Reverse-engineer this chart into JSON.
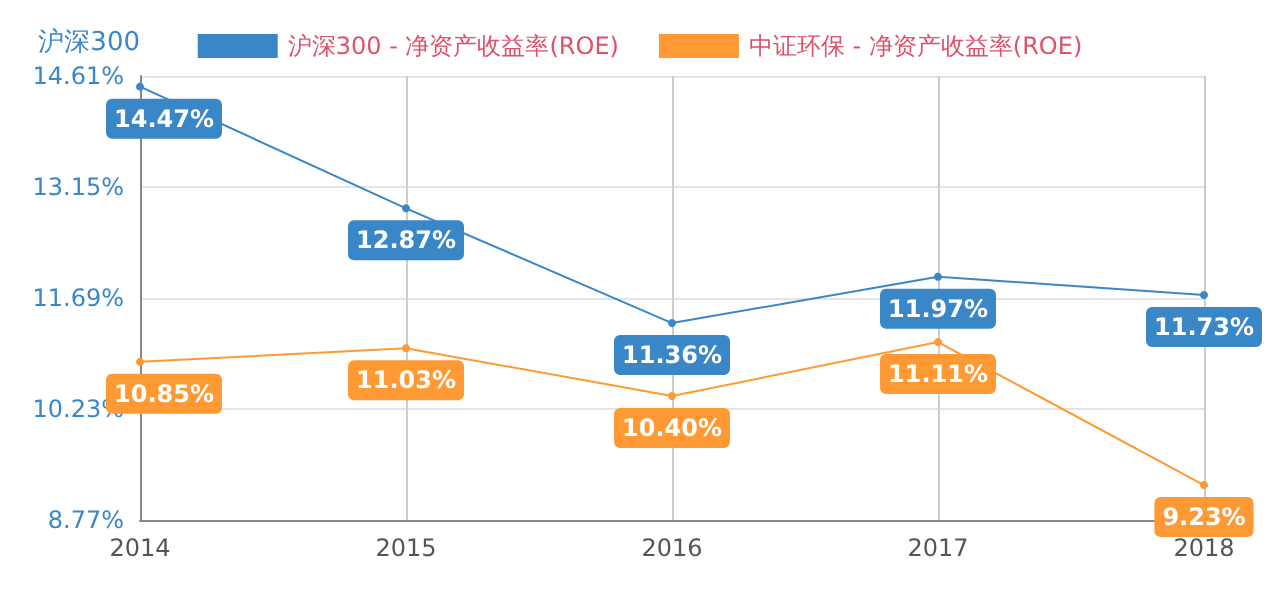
{
  "chart_data": {
    "type": "line",
    "ylabel": "沪深300",
    "categories": [
      "2014",
      "2015",
      "2016",
      "2017",
      "2018"
    ],
    "series": [
      {
        "name": "沪深300 - 净资产收益率(ROE)",
        "color": "#3a87c8",
        "values": [
          14.47,
          12.87,
          11.36,
          11.97,
          11.73
        ],
        "value_labels": [
          "14.47%",
          "12.87%",
          "11.36%",
          "11.97%",
          "11.73%"
        ]
      },
      {
        "name": "中证环保 - 净资产收益率(ROE)",
        "color": "#ff9933",
        "values": [
          10.85,
          11.03,
          10.4,
          11.11,
          9.23
        ],
        "value_labels": [
          "10.85%",
          "11.03%",
          "10.40%",
          "11.11%",
          "9.23%"
        ]
      }
    ],
    "ylim": [
      8.77,
      14.61
    ],
    "yticks": [
      {
        "value": 8.77,
        "label": "8.77%"
      },
      {
        "value": 10.23,
        "label": "10.23%"
      },
      {
        "value": 11.69,
        "label": "11.69%"
      },
      {
        "value": 13.15,
        "label": "13.15%"
      },
      {
        "value": 14.61,
        "label": "14.61%"
      }
    ],
    "grid": true,
    "legend": "top",
    "marker": "circle",
    "line_style": "solid"
  }
}
